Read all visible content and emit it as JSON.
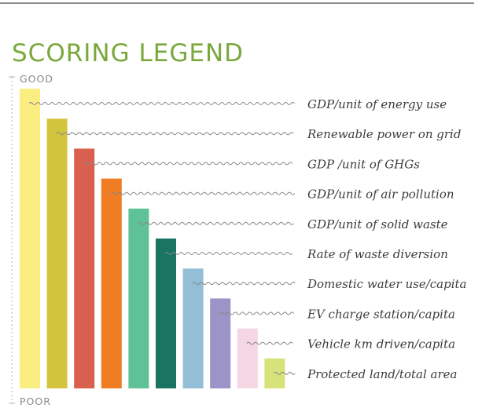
{
  "title": "SCORING LEGEND",
  "axis": {
    "top_label": "GOOD",
    "bottom_label": "POOR"
  },
  "chart_data": {
    "type": "bar",
    "title": "SCORING LEGEND",
    "xlabel": "",
    "ylabel": "",
    "ylim": [
      0,
      10
    ],
    "categories": [
      "GDP/unit of energy use",
      "Renewable power on grid",
      "GDP /unit of GHGs",
      "GDP/unit of air pollution",
      "GDP/unit of solid waste",
      "Rate of waste diversion",
      "Domestic water use/capita",
      "EV charge station/capita",
      "Vehicle km driven/capita",
      "Protected land/total area"
    ],
    "values": [
      10,
      9,
      8,
      7,
      6,
      5,
      4,
      3,
      2,
      1
    ],
    "colors": [
      "#fbee81",
      "#d3c43e",
      "#d9604f",
      "#f07d24",
      "#5ec197",
      "#197461",
      "#93bfd6",
      "#9c93c6",
      "#f4d7e2",
      "#d6e27a"
    ],
    "label_color": "#3c3c3c",
    "connector_color": "#888888"
  }
}
